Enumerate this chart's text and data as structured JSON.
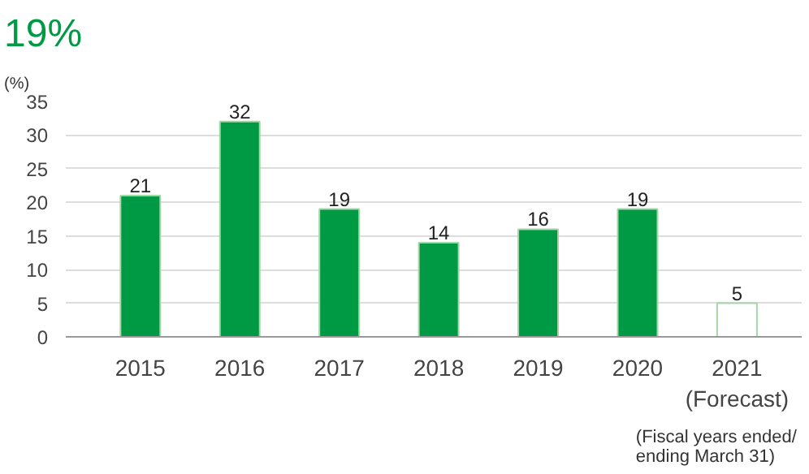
{
  "chart_data": {
    "type": "bar",
    "title": "19%",
    "ylabel": "(%)",
    "categories": [
      "2015",
      "2016",
      "2017",
      "2018",
      "2019",
      "2020",
      "2021\n(Forecast)"
    ],
    "values": [
      21,
      32,
      19,
      14,
      16,
      19,
      5
    ],
    "colors": [
      "#009944",
      "#009944",
      "#009944",
      "#009944",
      "#009944",
      "#009944",
      "#ffffff"
    ],
    "ylim": [
      0,
      35
    ],
    "yticks": [
      0,
      5,
      10,
      15,
      20,
      25,
      30,
      35
    ],
    "grid": "y",
    "data_labels": true,
    "annotations": [
      "(Fiscal years  ended/\nending March 31)"
    ]
  }
}
